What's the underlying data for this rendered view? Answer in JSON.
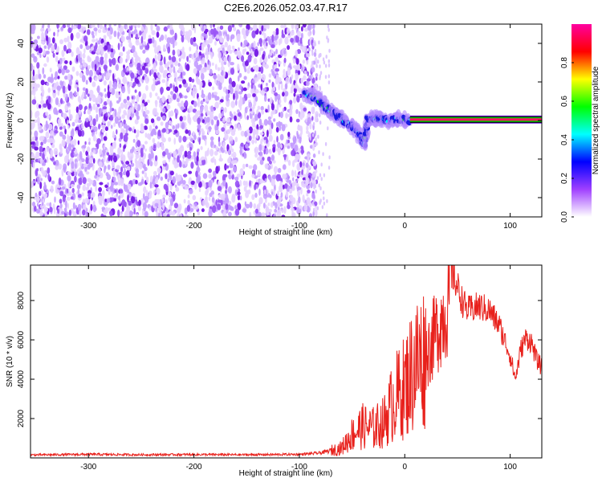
{
  "title": "C2E6.2026.052.03.47.R17",
  "chart_data": [
    {
      "type": "heatmap",
      "xlabel": "Height of straight line (km)",
      "ylabel": "Frequency (Hz)",
      "xlim": [
        -355,
        130
      ],
      "ylim": [
        -50,
        50
      ],
      "xticks": [
        -300,
        -200,
        -100,
        0,
        100
      ],
      "yticks": [
        -40,
        -20,
        0,
        20,
        40
      ],
      "colorbar": {
        "label": "Normalized spectral amplitude",
        "range": [
          0,
          1
        ],
        "ticks": [
          "0.0",
          "0.2",
          "0.4",
          "0.6",
          "0.8"
        ],
        "colors": [
          "#ffffff",
          "#a040ff",
          "#0000ff",
          "#00ffff",
          "#00ff00",
          "#ffff00",
          "#ff0000",
          "#ff00a0"
        ]
      },
      "regions": {
        "noise_field": {
          "x": [
            -355,
            -88
          ],
          "y": [
            -50,
            50
          ],
          "level": 0.12
        },
        "feature_path": [
          {
            "x": -95,
            "y": 14
          },
          {
            "x": -85,
            "y": 12
          },
          {
            "x": -75,
            "y": 7
          },
          {
            "x": -65,
            "y": 3
          },
          {
            "x": -55,
            "y": -1
          },
          {
            "x": -45,
            "y": -6
          },
          {
            "x": -38,
            "y": -12
          },
          {
            "x": -35,
            "y": 1
          },
          {
            "x": -25,
            "y": 1
          },
          {
            "x": -15,
            "y": 0
          },
          {
            "x": -5,
            "y": 1
          },
          {
            "x": 5,
            "y": 0
          }
        ],
        "stable_line": {
          "x": [
            5,
            130
          ],
          "y": 0.5
        }
      }
    },
    {
      "type": "line",
      "xlabel": "Height of straight line (km)",
      "ylabel": "SNR (10 * v/v)",
      "xlim": [
        -355,
        130
      ],
      "ylim": [
        0,
        9800
      ],
      "xticks": [
        -300,
        -200,
        -100,
        0,
        100
      ],
      "yticks": [
        2000,
        4000,
        6000,
        8000
      ],
      "color": "#e8211c",
      "series": [
        {
          "x": [
            -355,
            -300,
            -250,
            -200,
            -150,
            -100,
            -80,
            -60,
            -50,
            -40,
            -30,
            -20,
            -10,
            0,
            10,
            20,
            30,
            40,
            45,
            50,
            55,
            60,
            70,
            80,
            90,
            100,
            105,
            110,
            115,
            120,
            125,
            130
          ],
          "values": [
            150,
            180,
            160,
            170,
            160,
            180,
            250,
            500,
            1200,
            1600,
            1500,
            1800,
            3000,
            3600,
            4800,
            5200,
            6400,
            7600,
            9400,
            8700,
            7900,
            7500,
            7700,
            7500,
            6700,
            5200,
            4000,
            5500,
            6100,
            5900,
            5000,
            4600
          ]
        }
      ]
    }
  ]
}
